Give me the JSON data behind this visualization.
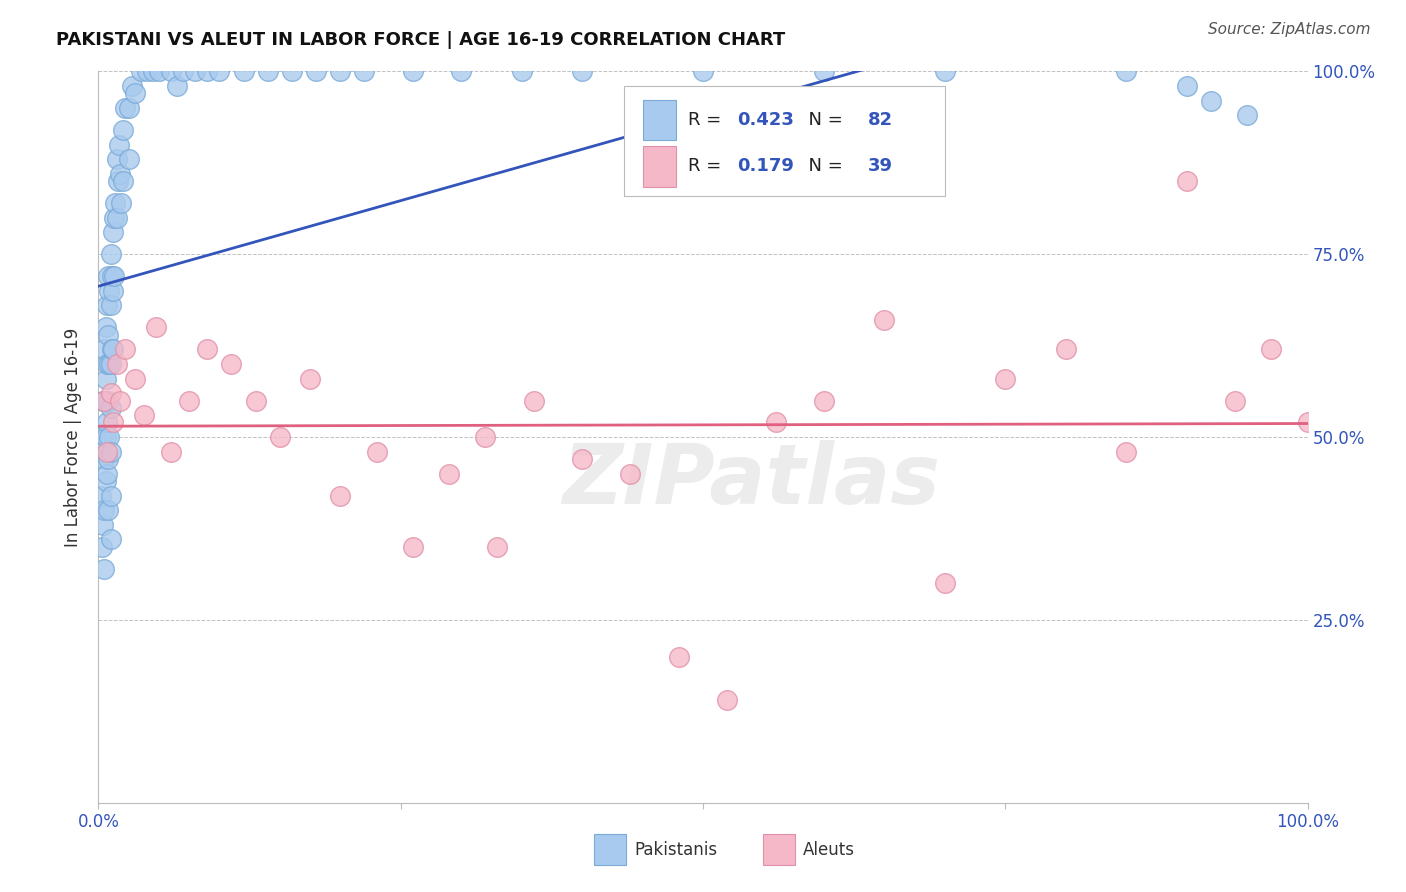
{
  "title": "PAKISTANI VS ALEUT IN LABOR FORCE | AGE 16-19 CORRELATION CHART",
  "source": "Source: ZipAtlas.com",
  "ylabel": "In Labor Force | Age 16-19",
  "legend_blue_r": "0.423",
  "legend_blue_n": "82",
  "legend_pink_r": "0.179",
  "legend_pink_n": "39",
  "legend_label_blue": "Pakistanis",
  "legend_label_pink": "Aleuts",
  "blue_fill": "#A8CAEE",
  "blue_edge": "#7AAAD8",
  "pink_fill": "#F5B8C8",
  "pink_edge": "#E090A8",
  "blue_line": "#3355BB",
  "pink_line": "#E06080",
  "axis_tick_color": "#3355BB",
  "title_color": "#111111",
  "source_color": "#555555",
  "grid_color": "#BBBBBB",
  "bg_color": "#FFFFFF",
  "watermark_color": "#DDDDDD",
  "watermark_text": "ZIPatlas",
  "legend_r_label_color": "#333333",
  "legend_val_color": "#3355BB",
  "bottom_legend_color": "#333333",
  "ylabel_color": "#333333",
  "blue_x": [
    0.002,
    0.003,
    0.003,
    0.004,
    0.004,
    0.004,
    0.005,
    0.005,
    0.005,
    0.005,
    0.005,
    0.006,
    0.006,
    0.006,
    0.006,
    0.007,
    0.007,
    0.007,
    0.007,
    0.008,
    0.008,
    0.008,
    0.008,
    0.008,
    0.009,
    0.009,
    0.009,
    0.01,
    0.01,
    0.01,
    0.01,
    0.01,
    0.01,
    0.01,
    0.011,
    0.011,
    0.012,
    0.012,
    0.012,
    0.013,
    0.013,
    0.014,
    0.015,
    0.015,
    0.016,
    0.017,
    0.018,
    0.019,
    0.02,
    0.02,
    0.022,
    0.025,
    0.025,
    0.028,
    0.03,
    0.035,
    0.04,
    0.045,
    0.05,
    0.06,
    0.065,
    0.07,
    0.08,
    0.09,
    0.1,
    0.12,
    0.14,
    0.16,
    0.18,
    0.2,
    0.22,
    0.26,
    0.3,
    0.35,
    0.4,
    0.5,
    0.6,
    0.7,
    0.85,
    0.9,
    0.92,
    0.95
  ],
  "blue_y": [
    0.42,
    0.35,
    0.5,
    0.55,
    0.48,
    0.38,
    0.62,
    0.55,
    0.47,
    0.4,
    0.32,
    0.65,
    0.58,
    0.5,
    0.44,
    0.68,
    0.6,
    0.52,
    0.45,
    0.72,
    0.64,
    0.55,
    0.47,
    0.4,
    0.7,
    0.6,
    0.5,
    0.75,
    0.68,
    0.6,
    0.54,
    0.48,
    0.42,
    0.36,
    0.72,
    0.62,
    0.78,
    0.7,
    0.62,
    0.8,
    0.72,
    0.82,
    0.88,
    0.8,
    0.85,
    0.9,
    0.86,
    0.82,
    0.92,
    0.85,
    0.95,
    0.95,
    0.88,
    0.98,
    0.97,
    1.0,
    1.0,
    1.0,
    1.0,
    1.0,
    0.98,
    1.0,
    1.0,
    1.0,
    1.0,
    1.0,
    1.0,
    1.0,
    1.0,
    1.0,
    1.0,
    1.0,
    1.0,
    1.0,
    1.0,
    1.0,
    1.0,
    1.0,
    1.0,
    0.98,
    0.96,
    0.94
  ],
  "pink_x": [
    0.005,
    0.007,
    0.01,
    0.012,
    0.015,
    0.018,
    0.022,
    0.03,
    0.038,
    0.048,
    0.06,
    0.075,
    0.09,
    0.11,
    0.13,
    0.15,
    0.175,
    0.2,
    0.23,
    0.26,
    0.29,
    0.32,
    0.36,
    0.4,
    0.44,
    0.48,
    0.52,
    0.56,
    0.6,
    0.65,
    0.7,
    0.75,
    0.8,
    0.85,
    0.9,
    0.94,
    0.97,
    1.0,
    0.33
  ],
  "pink_y": [
    0.55,
    0.48,
    0.56,
    0.52,
    0.6,
    0.55,
    0.62,
    0.58,
    0.53,
    0.65,
    0.48,
    0.55,
    0.62,
    0.6,
    0.55,
    0.5,
    0.58,
    0.42,
    0.48,
    0.35,
    0.45,
    0.5,
    0.55,
    0.47,
    0.45,
    0.2,
    0.14,
    0.52,
    0.55,
    0.66,
    0.3,
    0.58,
    0.62,
    0.48,
    0.85,
    0.55,
    0.62,
    0.52,
    0.35
  ]
}
